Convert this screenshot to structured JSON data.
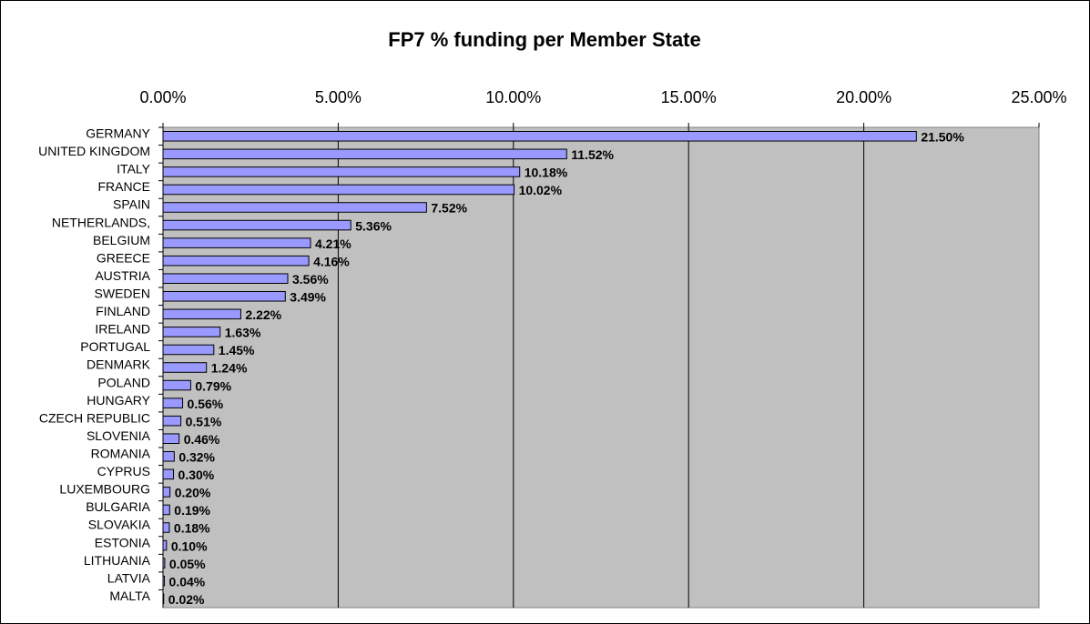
{
  "chart_data": {
    "type": "bar",
    "orientation": "horizontal",
    "title": "FP7 % funding per Member State",
    "categories": [
      "GERMANY",
      "UNITED KINGDOM",
      "ITALY",
      "FRANCE",
      "SPAIN",
      "NETHERLANDS,",
      "BELGIUM",
      "GREECE",
      "AUSTRIA",
      "SWEDEN",
      "FINLAND",
      "IRELAND",
      "PORTUGAL",
      "DENMARK",
      "POLAND",
      "HUNGARY",
      "CZECH REPUBLIC",
      "SLOVENIA",
      "ROMANIA",
      "CYPRUS",
      "LUXEMBOURG",
      "BULGARIA",
      "SLOVAKIA",
      "ESTONIA",
      "LITHUANIA",
      "LATVIA",
      "MALTA"
    ],
    "values": [
      21.5,
      11.52,
      10.18,
      10.02,
      7.52,
      5.36,
      4.21,
      4.16,
      3.56,
      3.49,
      2.22,
      1.63,
      1.45,
      1.24,
      0.79,
      0.56,
      0.51,
      0.46,
      0.32,
      0.3,
      0.2,
      0.19,
      0.18,
      0.1,
      0.05,
      0.04,
      0.02
    ],
    "value_labels": [
      "21.50%",
      "11.52%",
      "10.18%",
      "10.02%",
      "7.52%",
      "5.36%",
      "4.21%",
      "4.16%",
      "3.56%",
      "3.49%",
      "2.22%",
      "1.63%",
      "1.45%",
      "1.24%",
      "0.79%",
      "0.56%",
      "0.51%",
      "0.46%",
      "0.32%",
      "0.30%",
      "0.20%",
      "0.19%",
      "0.18%",
      "0.10%",
      "0.05%",
      "0.04%",
      "0.02%"
    ],
    "color": "#9999ff",
    "xlim": [
      0,
      25
    ],
    "xticks": [
      {
        "value": 0,
        "label": "0.00%"
      },
      {
        "value": 5,
        "label": "5.00%"
      },
      {
        "value": 10,
        "label": "10.00%"
      },
      {
        "value": 15,
        "label": "15.00%"
      },
      {
        "value": 20,
        "label": "20.00%"
      },
      {
        "value": 25,
        "label": "25.00%"
      }
    ],
    "grid": true
  }
}
